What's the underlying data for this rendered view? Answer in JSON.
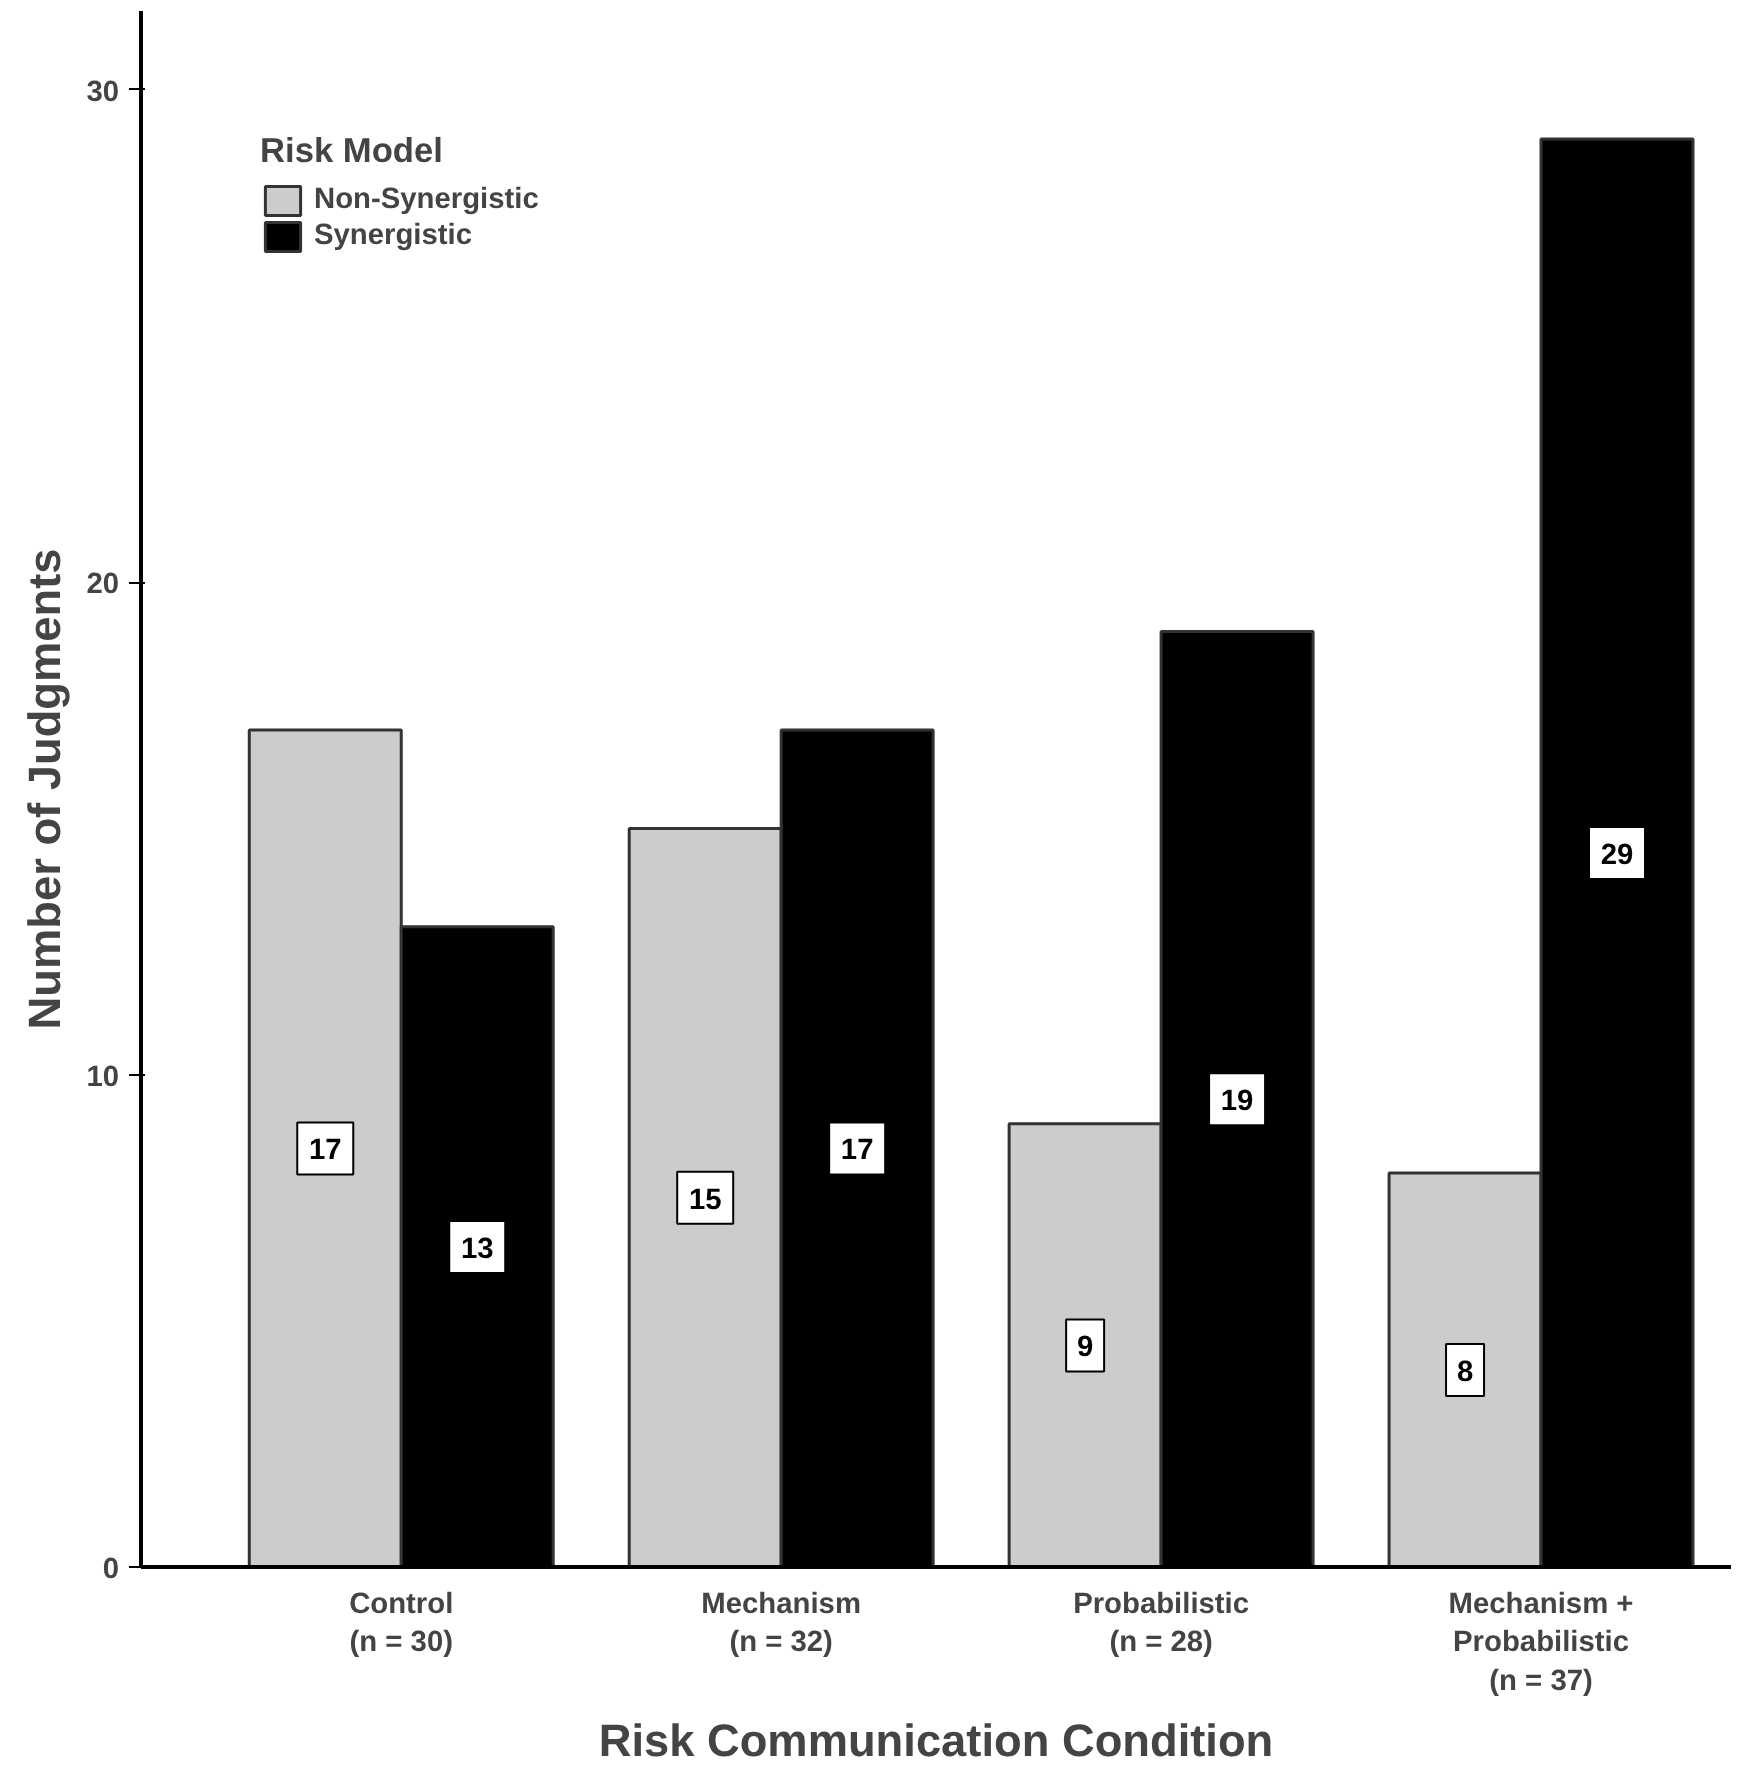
{
  "chart_data": {
    "type": "bar",
    "xlabel": "Risk Communication Condition",
    "ylabel": "Number of Judgments",
    "legend_title": "Risk Model",
    "categories": [
      "Control\n(n = 30)",
      "Mechanism\n(n = 32)",
      "Probabilistic\n(n = 28)",
      "Mechanism +\nProbabilistic\n(n = 37)"
    ],
    "series": [
      {
        "name": "Non-Synergistic",
        "color": "#cccccc",
        "values": [
          17,
          15,
          9,
          8
        ]
      },
      {
        "name": "Synergistic",
        "color": "#000000",
        "values": [
          13,
          17,
          19,
          29
        ]
      }
    ],
    "ylim": [
      0,
      31.6
    ],
    "yticks": [
      0,
      10,
      20,
      30
    ],
    "grid": false,
    "legend": "top left",
    "data_labels": true
  }
}
